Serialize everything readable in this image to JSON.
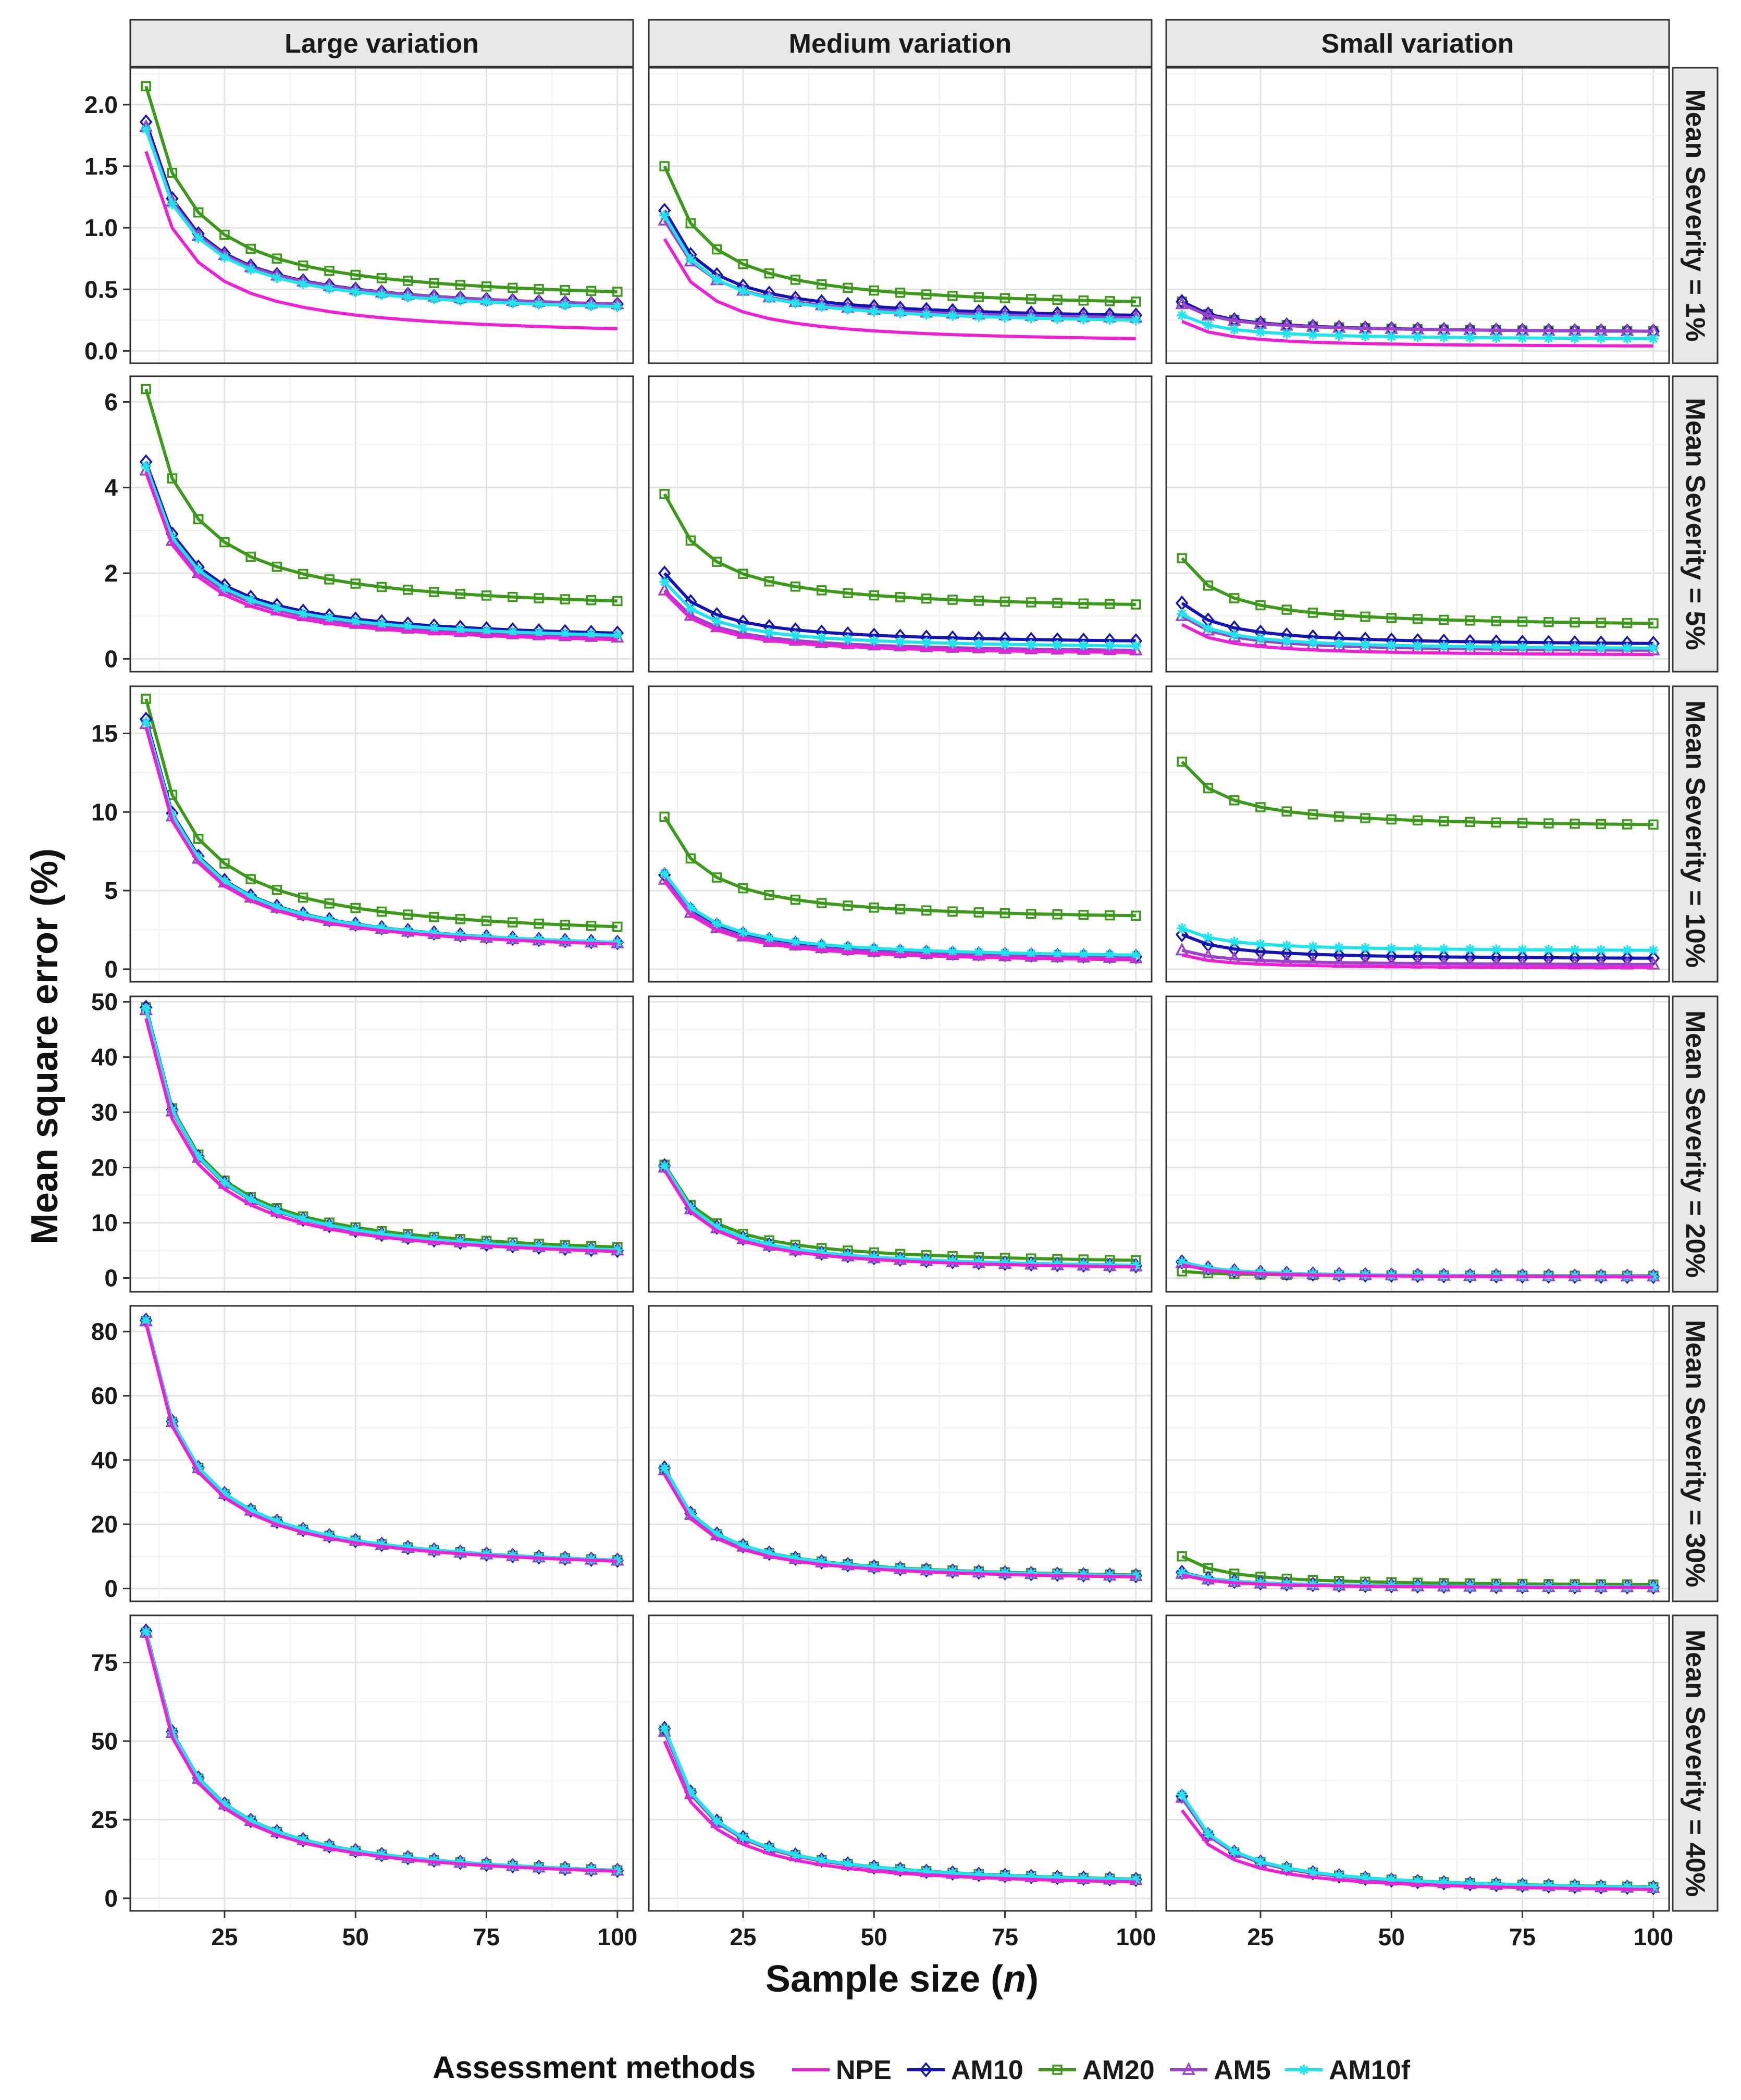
{
  "chart_data": {
    "type": "line",
    "facet_layout": "grid",
    "xlabel": "Sample size (n)",
    "xlabel_prefix": "Sample size (",
    "xlabel_var": "n",
    "xlabel_suffix": ")",
    "ylabel": "Mean square error (%)",
    "x": [
      10,
      15,
      20,
      25,
      30,
      35,
      40,
      45,
      50,
      55,
      60,
      65,
      70,
      75,
      80,
      85,
      90,
      95,
      100
    ],
    "xlim": [
      7,
      103
    ],
    "x_ticks": [
      25,
      50,
      75,
      100
    ],
    "x_tick_labels": [
      "25",
      "50",
      "75",
      "100"
    ],
    "column_strips": [
      "Large variation",
      "Medium variation",
      "Small  variation"
    ],
    "legend": {
      "title": "Assessment methods",
      "position": "bottom",
      "entries": [
        {
          "name": "NPE",
          "color": "#ee1fd6",
          "marker": "none"
        },
        {
          "name": "AM10",
          "color": "#1414b4",
          "marker": "diamond"
        },
        {
          "name": "AM20",
          "color": "#3b9a1a",
          "marker": "square"
        },
        {
          "name": "AM5",
          "color": "#9b43c9",
          "marker": "triangle"
        },
        {
          "name": "AM10f",
          "color": "#1fe4ec",
          "marker": "star"
        }
      ]
    },
    "rows": [
      {
        "strip": "Mean Severity = 1%",
        "ylim": [
          -0.1,
          2.3
        ],
        "y_ticks": [
          0,
          0.5,
          1,
          1.5,
          2
        ],
        "y_tick_labels": [
          "0.0",
          "0.5",
          "1.0",
          "1.5",
          "2.0"
        ],
        "panels": [
          {
            "column": "Large variation",
            "series": [
              {
                "name": "NPE",
                "start": 1.62,
                "end": 0.18,
                "decay": 1.3
              },
              {
                "name": "AM10",
                "start": 1.86,
                "end": 0.38,
                "decay": 1.25
              },
              {
                "name": "AM20",
                "start": 2.15,
                "end": 0.48,
                "decay": 1.25
              },
              {
                "name": "AM5",
                "start": 1.82,
                "end": 0.38,
                "decay": 1.25
              },
              {
                "name": "AM10f",
                "start": 1.8,
                "end": 0.36,
                "decay": 1.25
              }
            ]
          },
          {
            "column": "Medium variation",
            "series": [
              {
                "name": "NPE",
                "start": 0.91,
                "end": 0.1,
                "decay": 1.3
              },
              {
                "name": "AM10",
                "start": 1.14,
                "end": 0.29,
                "decay": 1.25
              },
              {
                "name": "AM20",
                "start": 1.5,
                "end": 0.4,
                "decay": 1.25
              },
              {
                "name": "AM5",
                "start": 1.06,
                "end": 0.27,
                "decay": 1.25
              },
              {
                "name": "AM10f",
                "start": 1.1,
                "end": 0.25,
                "decay": 1.25
              }
            ]
          },
          {
            "column": "Small  variation",
            "series": [
              {
                "name": "NPE",
                "start": 0.24,
                "end": 0.04,
                "decay": 1.3
              },
              {
                "name": "AM10",
                "start": 0.4,
                "end": 0.16,
                "decay": 1.25
              },
              {
                "name": "AM20",
                "start": 0.4,
                "end": 0.16,
                "decay": 1.25
              },
              {
                "name": "AM5",
                "start": 0.38,
                "end": 0.16,
                "decay": 1.25
              },
              {
                "name": "AM10f",
                "start": 0.29,
                "end": 0.1,
                "decay": 1.25
              }
            ]
          }
        ]
      },
      {
        "strip": "Mean Severity = 5%",
        "ylim": [
          -0.3,
          6.6
        ],
        "y_ticks": [
          0,
          2,
          4,
          6
        ],
        "y_tick_labels": [
          "0",
          "2",
          "4",
          "6"
        ],
        "panels": [
          {
            "column": "Large variation",
            "series": [
              {
                "name": "NPE",
                "start": 4.35,
                "end": 0.45,
                "decay": 1.3
              },
              {
                "name": "AM10",
                "start": 4.6,
                "end": 0.6,
                "decay": 1.25
              },
              {
                "name": "AM20",
                "start": 6.3,
                "end": 1.35,
                "decay": 1.25
              },
              {
                "name": "AM5",
                "start": 4.4,
                "end": 0.5,
                "decay": 1.25
              },
              {
                "name": "AM10f",
                "start": 4.5,
                "end": 0.55,
                "decay": 1.25
              }
            ]
          },
          {
            "column": "Medium variation",
            "series": [
              {
                "name": "NPE",
                "start": 1.55,
                "end": 0.15,
                "decay": 1.3
              },
              {
                "name": "AM10",
                "start": 2.0,
                "end": 0.42,
                "decay": 1.25
              },
              {
                "name": "AM20",
                "start": 3.85,
                "end": 1.27,
                "decay": 1.25
              },
              {
                "name": "AM5",
                "start": 1.6,
                "end": 0.2,
                "decay": 1.25
              },
              {
                "name": "AM10f",
                "start": 1.8,
                "end": 0.3,
                "decay": 1.25
              }
            ]
          },
          {
            "column": "Small  variation",
            "series": [
              {
                "name": "NPE",
                "start": 0.8,
                "end": 0.1,
                "decay": 1.3
              },
              {
                "name": "AM10",
                "start": 1.3,
                "end": 0.36,
                "decay": 1.25
              },
              {
                "name": "AM20",
                "start": 2.35,
                "end": 0.83,
                "decay": 1.25
              },
              {
                "name": "AM5",
                "start": 1.0,
                "end": 0.2,
                "decay": 1.25
              },
              {
                "name": "AM10f",
                "start": 1.05,
                "end": 0.25,
                "decay": 1.25
              }
            ]
          }
        ]
      },
      {
        "strip": "Mean Severity = 10%",
        "ylim": [
          -0.8,
          18.0
        ],
        "y_ticks": [
          0,
          5,
          10,
          15
        ],
        "y_tick_labels": [
          "0",
          "5",
          "10",
          "15"
        ],
        "panels": [
          {
            "column": "Large variation",
            "series": [
              {
                "name": "NPE",
                "start": 15.4,
                "end": 1.6,
                "decay": 1.3
              },
              {
                "name": "AM10",
                "start": 15.9,
                "end": 1.7,
                "decay": 1.25
              },
              {
                "name": "AM20",
                "start": 17.2,
                "end": 2.7,
                "decay": 1.25
              },
              {
                "name": "AM5",
                "start": 15.6,
                "end": 1.65,
                "decay": 1.25
              },
              {
                "name": "AM10f",
                "start": 15.7,
                "end": 1.7,
                "decay": 1.25
              }
            ]
          },
          {
            "column": "Medium variation",
            "series": [
              {
                "name": "NPE",
                "start": 5.6,
                "end": 0.6,
                "decay": 1.3
              },
              {
                "name": "AM10",
                "start": 6.0,
                "end": 0.8,
                "decay": 1.25
              },
              {
                "name": "AM20",
                "start": 9.7,
                "end": 3.4,
                "decay": 1.25
              },
              {
                "name": "AM5",
                "start": 5.7,
                "end": 0.7,
                "decay": 1.25
              },
              {
                "name": "AM10f",
                "start": 6.1,
                "end": 0.9,
                "decay": 1.25
              }
            ]
          },
          {
            "column": "Small  variation",
            "series": [
              {
                "name": "NPE",
                "start": 0.9,
                "end": 0.1,
                "decay": 1.3
              },
              {
                "name": "AM10",
                "start": 2.2,
                "end": 0.7,
                "decay": 1.25
              },
              {
                "name": "AM20",
                "start": 13.2,
                "end": 9.2,
                "decay": 1.25
              },
              {
                "name": "AM5",
                "start": 1.2,
                "end": 0.3,
                "decay": 1.25
              },
              {
                "name": "AM10f",
                "start": 2.6,
                "end": 1.2,
                "decay": 1.25
              }
            ]
          }
        ]
      },
      {
        "strip": "Mean Severity = 20%",
        "ylim": [
          -2.5,
          51.0
        ],
        "y_ticks": [
          0,
          10,
          20,
          30,
          40,
          50
        ],
        "y_tick_labels": [
          "0",
          "10",
          "20",
          "30",
          "40",
          "50"
        ],
        "panels": [
          {
            "column": "Large variation",
            "series": [
              {
                "name": "NPE",
                "start": 47.0,
                "end": 4.8,
                "decay": 1.3
              },
              {
                "name": "AM10",
                "start": 49.0,
                "end": 5.0,
                "decay": 1.25
              },
              {
                "name": "AM20",
                "start": 49.0,
                "end": 5.6,
                "decay": 1.25
              },
              {
                "name": "AM5",
                "start": 48.5,
                "end": 5.0,
                "decay": 1.25
              },
              {
                "name": "AM10f",
                "start": 48.8,
                "end": 5.1,
                "decay": 1.25
              }
            ]
          },
          {
            "column": "Medium variation",
            "series": [
              {
                "name": "NPE",
                "start": 19.5,
                "end": 2.0,
                "decay": 1.3
              },
              {
                "name": "AM10",
                "start": 20.3,
                "end": 2.2,
                "decay": 1.25
              },
              {
                "name": "AM20",
                "start": 20.5,
                "end": 3.2,
                "decay": 1.25
              },
              {
                "name": "AM5",
                "start": 20.0,
                "end": 2.1,
                "decay": 1.25
              },
              {
                "name": "AM10f",
                "start": 20.3,
                "end": 2.3,
                "decay": 1.25
              }
            ]
          },
          {
            "column": "Small  variation",
            "series": [
              {
                "name": "NPE",
                "start": 2.4,
                "end": 0.2,
                "decay": 1.3
              },
              {
                "name": "AM10",
                "start": 2.9,
                "end": 0.3,
                "decay": 1.25
              },
              {
                "name": "AM20",
                "start": 1.2,
                "end": 0.4,
                "decay": 1.25
              },
              {
                "name": "AM5",
                "start": 2.7,
                "end": 0.3,
                "decay": 1.25
              },
              {
                "name": "AM10f",
                "start": 2.9,
                "end": 0.3,
                "decay": 1.25
              }
            ]
          }
        ]
      },
      {
        "strip": "Mean Severity = 30%",
        "ylim": [
          -4,
          88
        ],
        "y_ticks": [
          0,
          20,
          40,
          60,
          80
        ],
        "y_tick_labels": [
          "0",
          "20",
          "40",
          "60",
          "80"
        ],
        "panels": [
          {
            "column": "Large variation",
            "series": [
              {
                "name": "NPE",
                "start": 82.5,
                "end": 8.5,
                "decay": 1.3
              },
              {
                "name": "AM10",
                "start": 83.5,
                "end": 8.8,
                "decay": 1.25
              },
              {
                "name": "AM20",
                "start": 83.3,
                "end": 8.8,
                "decay": 1.25
              },
              {
                "name": "AM5",
                "start": 83.2,
                "end": 8.7,
                "decay": 1.25
              },
              {
                "name": "AM10f",
                "start": 83.5,
                "end": 8.8,
                "decay": 1.25
              }
            ]
          },
          {
            "column": "Medium variation",
            "series": [
              {
                "name": "NPE",
                "start": 35.5,
                "end": 3.6,
                "decay": 1.3
              },
              {
                "name": "AM10",
                "start": 37.5,
                "end": 4.0,
                "decay": 1.25
              },
              {
                "name": "AM20",
                "start": 37.0,
                "end": 4.2,
                "decay": 1.25
              },
              {
                "name": "AM5",
                "start": 36.8,
                "end": 3.9,
                "decay": 1.25
              },
              {
                "name": "AM10f",
                "start": 37.5,
                "end": 4.0,
                "decay": 1.25
              }
            ]
          },
          {
            "column": "Small  variation",
            "series": [
              {
                "name": "NPE",
                "start": 4.2,
                "end": 0.3,
                "decay": 1.3
              },
              {
                "name": "AM10",
                "start": 5.0,
                "end": 0.5,
                "decay": 1.25
              },
              {
                "name": "AM20",
                "start": 10.0,
                "end": 1.2,
                "decay": 1.25
              },
              {
                "name": "AM5",
                "start": 4.6,
                "end": 0.4,
                "decay": 1.25
              },
              {
                "name": "AM10f",
                "start": 4.9,
                "end": 0.5,
                "decay": 1.25
              }
            ]
          }
        ]
      },
      {
        "strip": "Mean Severity = 40%",
        "ylim": [
          -4,
          90
        ],
        "y_ticks": [
          0,
          25,
          50,
          75
        ],
        "y_tick_labels": [
          "0",
          "25",
          "50",
          "75"
        ],
        "panels": [
          {
            "column": "Large variation",
            "series": [
              {
                "name": "NPE",
                "start": 83.5,
                "end": 8.6,
                "decay": 1.3
              },
              {
                "name": "AM10",
                "start": 85.0,
                "end": 8.9,
                "decay": 1.25
              },
              {
                "name": "AM20",
                "start": 84.5,
                "end": 8.9,
                "decay": 1.25
              },
              {
                "name": "AM5",
                "start": 84.6,
                "end": 8.8,
                "decay": 1.25
              },
              {
                "name": "AM10f",
                "start": 84.8,
                "end": 8.9,
                "decay": 1.25
              }
            ]
          },
          {
            "column": "Medium variation",
            "series": [
              {
                "name": "NPE",
                "start": 50.0,
                "end": 5.2,
                "decay": 1.3
              },
              {
                "name": "AM10",
                "start": 54.0,
                "end": 6.0,
                "decay": 1.25
              },
              {
                "name": "AM20",
                "start": 53.5,
                "end": 6.1,
                "decay": 1.25
              },
              {
                "name": "AM5",
                "start": 53.0,
                "end": 5.8,
                "decay": 1.25
              },
              {
                "name": "AM10f",
                "start": 54.0,
                "end": 6.0,
                "decay": 1.25
              }
            ]
          },
          {
            "column": "Small  variation",
            "series": [
              {
                "name": "NPE",
                "start": 28.0,
                "end": 2.8,
                "decay": 1.3
              },
              {
                "name": "AM10",
                "start": 32.5,
                "end": 3.4,
                "decay": 1.25
              },
              {
                "name": "AM20",
                "start": 32.0,
                "end": 3.6,
                "decay": 1.25
              },
              {
                "name": "AM5",
                "start": 32.0,
                "end": 3.3,
                "decay": 1.25
              },
              {
                "name": "AM10f",
                "start": 33.0,
                "end": 3.5,
                "decay": 1.25
              }
            ]
          }
        ]
      }
    ]
  }
}
